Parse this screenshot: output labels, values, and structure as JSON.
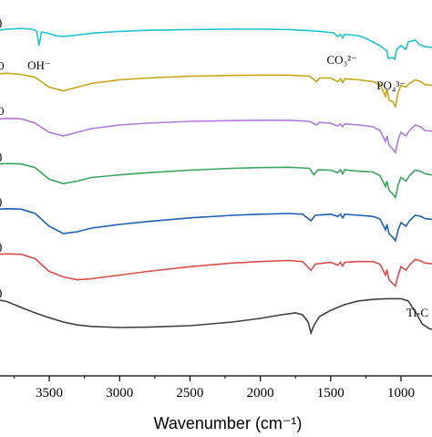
{
  "chart_data": {
    "type": "line",
    "xlabel": "Wavenumber (cm⁻¹)",
    "xlim": [
      3850,
      780
    ],
    "x_ticks": [
      3500,
      3000,
      2500,
      2000,
      1500,
      1000
    ],
    "x_tick_labels": [
      "3500",
      "3000",
      "2500",
      "2000",
      "1500",
      "1000"
    ],
    "grid": false,
    "legend": "none",
    "annotations": [
      {
        "text": "OH⁻",
        "x": 3572
      },
      {
        "text": "CO₃²⁻",
        "x": 1420
      },
      {
        "text": "PO₄³⁻",
        "x": 1070
      }
    ],
    "series": [
      {
        "color": "#1fc4cc",
        "label_left": ")",
        "label_right": "",
        "points": [
          [
            3850,
            0.88
          ],
          [
            3800,
            0.9
          ],
          [
            3700,
            0.92
          ],
          [
            3620,
            0.9
          ],
          [
            3590,
            0.85
          ],
          [
            3572,
            0.45
          ],
          [
            3555,
            0.82
          ],
          [
            3520,
            0.8
          ],
          [
            3450,
            0.72
          ],
          [
            3400,
            0.7
          ],
          [
            3300,
            0.74
          ],
          [
            3200,
            0.79
          ],
          [
            3000,
            0.84
          ],
          [
            2800,
            0.87
          ],
          [
            2500,
            0.89
          ],
          [
            2200,
            0.9
          ],
          [
            2000,
            0.9
          ],
          [
            1800,
            0.89
          ],
          [
            1650,
            0.86
          ],
          [
            1550,
            0.83
          ],
          [
            1480,
            0.8
          ],
          [
            1450,
            0.7
          ],
          [
            1430,
            0.76
          ],
          [
            1415,
            0.66
          ],
          [
            1400,
            0.76
          ],
          [
            1300,
            0.72
          ],
          [
            1250,
            0.65
          ],
          [
            1200,
            0.55
          ],
          [
            1150,
            0.45
          ],
          [
            1100,
            0.3
          ],
          [
            1090,
            0.1
          ],
          [
            1060,
            0.12
          ],
          [
            1045,
            0.08
          ],
          [
            1030,
            0.35
          ],
          [
            1000,
            0.45
          ],
          [
            965,
            0.35
          ],
          [
            950,
            0.55
          ],
          [
            900,
            0.6
          ],
          [
            870,
            0.48
          ],
          [
            830,
            0.42
          ],
          [
            780,
            0.4
          ]
        ]
      },
      {
        "color": "#c8a416",
        "label_left": "0",
        "label_right": "",
        "points": [
          [
            3850,
            0.92
          ],
          [
            3800,
            0.93
          ],
          [
            3700,
            0.9
          ],
          [
            3600,
            0.82
          ],
          [
            3500,
            0.55
          ],
          [
            3400,
            0.45
          ],
          [
            3300,
            0.55
          ],
          [
            3200,
            0.65
          ],
          [
            3000,
            0.75
          ],
          [
            2800,
            0.8
          ],
          [
            2500,
            0.85
          ],
          [
            2200,
            0.87
          ],
          [
            2000,
            0.88
          ],
          [
            1800,
            0.88
          ],
          [
            1650,
            0.85
          ],
          [
            1600,
            0.7
          ],
          [
            1580,
            0.8
          ],
          [
            1500,
            0.8
          ],
          [
            1450,
            0.7
          ],
          [
            1430,
            0.78
          ],
          [
            1415,
            0.68
          ],
          [
            1400,
            0.78
          ],
          [
            1300,
            0.75
          ],
          [
            1200,
            0.7
          ],
          [
            1150,
            0.62
          ],
          [
            1110,
            0.3
          ],
          [
            1100,
            0.5
          ],
          [
            1085,
            0.2
          ],
          [
            1060,
            0.15
          ],
          [
            1040,
            0.02
          ],
          [
            1020,
            0.4
          ],
          [
            1000,
            0.6
          ],
          [
            965,
            0.55
          ],
          [
            940,
            0.65
          ],
          [
            900,
            0.75
          ],
          [
            860,
            0.7
          ],
          [
            830,
            0.62
          ],
          [
            780,
            0.6
          ]
        ]
      },
      {
        "color": "#b07ad8",
        "label_left": "0",
        "label_right": "",
        "points": [
          [
            3850,
            0.92
          ],
          [
            3800,
            0.93
          ],
          [
            3700,
            0.92
          ],
          [
            3600,
            0.8
          ],
          [
            3500,
            0.55
          ],
          [
            3400,
            0.45
          ],
          [
            3300,
            0.55
          ],
          [
            3200,
            0.65
          ],
          [
            3000,
            0.75
          ],
          [
            2800,
            0.8
          ],
          [
            2500,
            0.85
          ],
          [
            2200,
            0.87
          ],
          [
            2000,
            0.88
          ],
          [
            1800,
            0.88
          ],
          [
            1650,
            0.85
          ],
          [
            1600,
            0.75
          ],
          [
            1580,
            0.82
          ],
          [
            1500,
            0.8
          ],
          [
            1450,
            0.72
          ],
          [
            1430,
            0.78
          ],
          [
            1415,
            0.7
          ],
          [
            1400,
            0.78
          ],
          [
            1300,
            0.75
          ],
          [
            1200,
            0.7
          ],
          [
            1150,
            0.6
          ],
          [
            1110,
            0.3
          ],
          [
            1100,
            0.45
          ],
          [
            1085,
            0.2
          ],
          [
            1060,
            0.1
          ],
          [
            1040,
            0.0
          ],
          [
            1020,
            0.35
          ],
          [
            1000,
            0.55
          ],
          [
            965,
            0.45
          ],
          [
            940,
            0.6
          ],
          [
            900,
            0.75
          ],
          [
            860,
            0.7
          ],
          [
            830,
            0.6
          ],
          [
            780,
            0.58
          ]
        ]
      },
      {
        "color": "#3aa55c",
        "label_left": ")",
        "label_right": "",
        "points": [
          [
            3850,
            0.92
          ],
          [
            3800,
            0.93
          ],
          [
            3700,
            0.92
          ],
          [
            3600,
            0.82
          ],
          [
            3500,
            0.5
          ],
          [
            3400,
            0.38
          ],
          [
            3300,
            0.45
          ],
          [
            3200,
            0.55
          ],
          [
            3000,
            0.62
          ],
          [
            2800,
            0.68
          ],
          [
            2500,
            0.75
          ],
          [
            2200,
            0.8
          ],
          [
            2000,
            0.82
          ],
          [
            1800,
            0.83
          ],
          [
            1650,
            0.8
          ],
          [
            1620,
            0.62
          ],
          [
            1590,
            0.76
          ],
          [
            1500,
            0.75
          ],
          [
            1450,
            0.68
          ],
          [
            1430,
            0.76
          ],
          [
            1415,
            0.65
          ],
          [
            1400,
            0.76
          ],
          [
            1300,
            0.72
          ],
          [
            1200,
            0.7
          ],
          [
            1150,
            0.6
          ],
          [
            1110,
            0.3
          ],
          [
            1100,
            0.45
          ],
          [
            1085,
            0.2
          ],
          [
            1060,
            0.1
          ],
          [
            1040,
            0.0
          ],
          [
            1020,
            0.35
          ],
          [
            1000,
            0.55
          ],
          [
            965,
            0.45
          ],
          [
            940,
            0.6
          ],
          [
            900,
            0.75
          ],
          [
            860,
            0.72
          ],
          [
            830,
            0.65
          ],
          [
            780,
            0.62
          ]
        ]
      },
      {
        "color": "#1f5fb4",
        "label_left": ")",
        "label_right": "",
        "points": [
          [
            3850,
            0.92
          ],
          [
            3800,
            0.93
          ],
          [
            3700,
            0.92
          ],
          [
            3600,
            0.8
          ],
          [
            3500,
            0.45
          ],
          [
            3400,
            0.25
          ],
          [
            3300,
            0.3
          ],
          [
            3200,
            0.4
          ],
          [
            3000,
            0.5
          ],
          [
            2800,
            0.58
          ],
          [
            2500,
            0.68
          ],
          [
            2200,
            0.75
          ],
          [
            2000,
            0.78
          ],
          [
            1800,
            0.8
          ],
          [
            1700,
            0.78
          ],
          [
            1640,
            0.6
          ],
          [
            1610,
            0.75
          ],
          [
            1500,
            0.78
          ],
          [
            1450,
            0.72
          ],
          [
            1430,
            0.78
          ],
          [
            1415,
            0.68
          ],
          [
            1400,
            0.78
          ],
          [
            1300,
            0.75
          ],
          [
            1200,
            0.72
          ],
          [
            1150,
            0.65
          ],
          [
            1110,
            0.35
          ],
          [
            1100,
            0.5
          ],
          [
            1085,
            0.25
          ],
          [
            1060,
            0.15
          ],
          [
            1040,
            0.05
          ],
          [
            1020,
            0.35
          ],
          [
            1000,
            0.55
          ],
          [
            965,
            0.45
          ],
          [
            940,
            0.6
          ],
          [
            900,
            0.75
          ],
          [
            860,
            0.72
          ],
          [
            830,
            0.66
          ],
          [
            780,
            0.64
          ]
        ]
      },
      {
        "color": "#d94c4c",
        "label_left": ")",
        "label_right": "",
        "points": [
          [
            3850,
            0.92
          ],
          [
            3800,
            0.93
          ],
          [
            3700,
            0.92
          ],
          [
            3600,
            0.8
          ],
          [
            3500,
            0.45
          ],
          [
            3400,
            0.3
          ],
          [
            3300,
            0.22
          ],
          [
            3200,
            0.25
          ],
          [
            3000,
            0.35
          ],
          [
            2800,
            0.45
          ],
          [
            2500,
            0.58
          ],
          [
            2200,
            0.68
          ],
          [
            2000,
            0.72
          ],
          [
            1800,
            0.75
          ],
          [
            1700,
            0.72
          ],
          [
            1640,
            0.48
          ],
          [
            1610,
            0.65
          ],
          [
            1500,
            0.7
          ],
          [
            1450,
            0.62
          ],
          [
            1430,
            0.7
          ],
          [
            1415,
            0.6
          ],
          [
            1400,
            0.7
          ],
          [
            1300,
            0.72
          ],
          [
            1200,
            0.72
          ],
          [
            1150,
            0.65
          ],
          [
            1110,
            0.35
          ],
          [
            1100,
            0.5
          ],
          [
            1085,
            0.22
          ],
          [
            1060,
            0.12
          ],
          [
            1040,
            0.05
          ],
          [
            1020,
            0.35
          ],
          [
            1000,
            0.58
          ],
          [
            965,
            0.48
          ],
          [
            940,
            0.62
          ],
          [
            900,
            0.78
          ],
          [
            860,
            0.74
          ],
          [
            830,
            0.68
          ],
          [
            780,
            0.66
          ]
        ]
      },
      {
        "color": "#404040",
        "label_left": ")",
        "label_right": "Ti-C",
        "points": [
          [
            3850,
            0.9
          ],
          [
            3800,
            0.86
          ],
          [
            3700,
            0.7
          ],
          [
            3600,
            0.55
          ],
          [
            3500,
            0.42
          ],
          [
            3400,
            0.3
          ],
          [
            3300,
            0.22
          ],
          [
            3200,
            0.18
          ],
          [
            3000,
            0.15
          ],
          [
            2800,
            0.16
          ],
          [
            2500,
            0.2
          ],
          [
            2200,
            0.3
          ],
          [
            2000,
            0.4
          ],
          [
            1850,
            0.5
          ],
          [
            1750,
            0.55
          ],
          [
            1700,
            0.5
          ],
          [
            1660,
            0.3
          ],
          [
            1640,
            0.0
          ],
          [
            1620,
            0.2
          ],
          [
            1580,
            0.45
          ],
          [
            1500,
            0.62
          ],
          [
            1400,
            0.78
          ],
          [
            1300,
            0.88
          ],
          [
            1200,
            0.92
          ],
          [
            1100,
            0.94
          ],
          [
            1000,
            0.94
          ],
          [
            950,
            0.88
          ],
          [
            900,
            0.6
          ],
          [
            850,
            0.25
          ],
          [
            800,
            0.12
          ],
          [
            780,
            0.1
          ]
        ]
      }
    ]
  }
}
